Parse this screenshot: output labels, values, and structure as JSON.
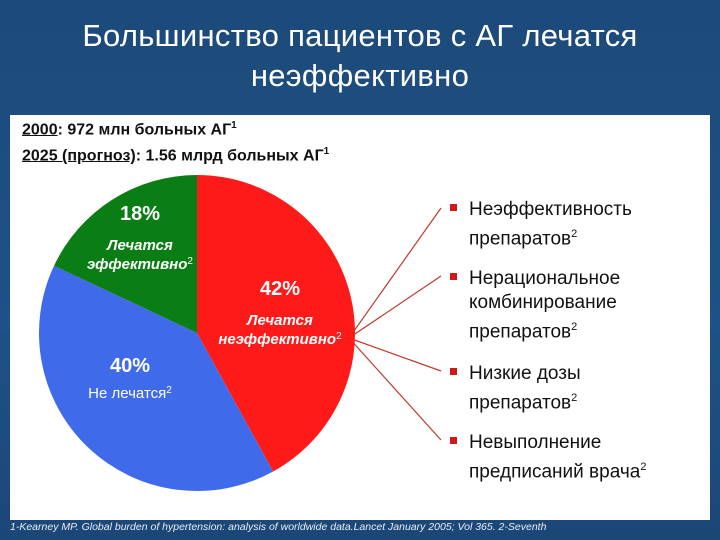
{
  "slide": {
    "title_line1": "Большинство пациентов с АГ лечатся",
    "title_line2": "неэффективно",
    "stat1_year": "2000",
    "stat1_text": ": 972 млн больных АГ",
    "stat1_ref": "1",
    "stat2_label": "2025 (прогноз)",
    "stat2_text": ": 1.56 млрд  больных АГ",
    "stat2_ref": "1",
    "footnote": "1-Kearney MP. Global burden of hypertension: analysis of worldwide data.Lancet January 2005; Vol 365. 2-Seventh"
  },
  "chart_data": {
    "type": "pie",
    "title": "",
    "slices": [
      {
        "pct_label": "42%",
        "value": 42,
        "label": "Лечатся неэффективно",
        "label_line1": "Лечатся",
        "label_line2": "неэффективно",
        "ref": "2",
        "color": "#ff1a1a"
      },
      {
        "pct_label": "40%",
        "value": 40,
        "label": "Не лечатся",
        "label_line1": "Не лечатся",
        "label_line2": "",
        "ref": "2",
        "color": "#3f6bea"
      },
      {
        "pct_label": "18%",
        "value": 18,
        "label": "Лечатся эффективно",
        "label_line1": "Лечатся",
        "label_line2": "эффективно",
        "ref": "2",
        "color": "#0a7d14"
      }
    ]
  },
  "reasons": [
    {
      "line1": "Неэффективность",
      "line2": "препаратов",
      "line3": "",
      "ref": "2"
    },
    {
      "line1": "Нерациональное",
      "line2": "комбинирование",
      "line3": "препаратов",
      "ref": "2"
    },
    {
      "line1": "Низкие дозы",
      "line2": "препаратов",
      "line3": "",
      "ref": "2"
    },
    {
      "line1": "Невыполнение",
      "line2": "предписаний врача",
      "line3": "",
      "ref": "2"
    }
  ],
  "colors": {
    "background": "#1e4d7e",
    "panel": "#ffffff",
    "bullet": "#d01818",
    "connector": "#c0392b"
  }
}
